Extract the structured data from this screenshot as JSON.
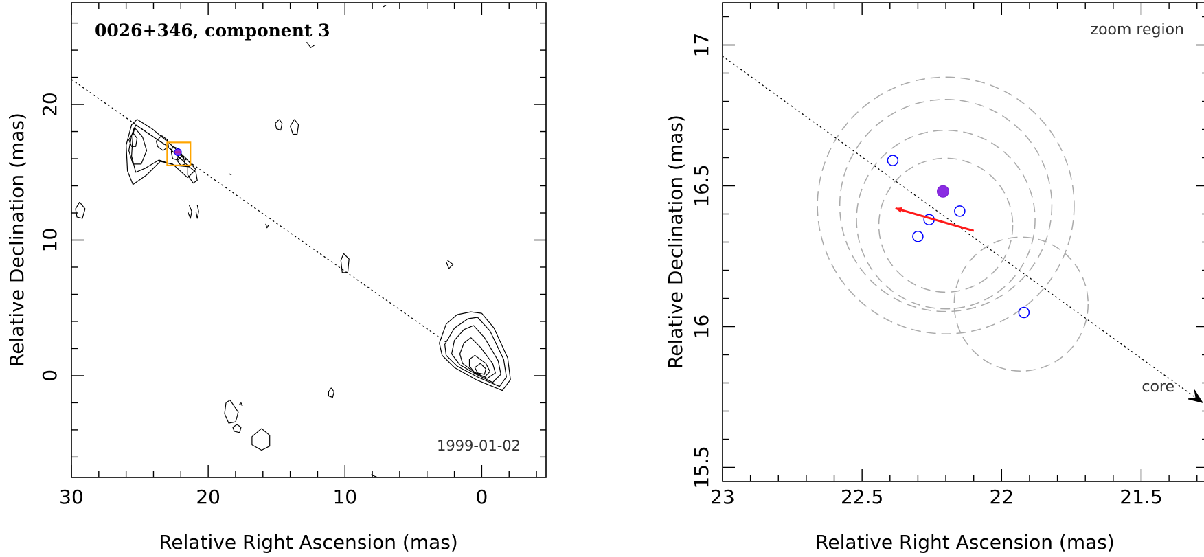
{
  "chart_data": [
    {
      "type": "contour",
      "title": "0026+346, component 3",
      "epoch_label": "1999-01-02",
      "xlabel": "Relative Right Ascension (mas)",
      "ylabel": "Relative Declination (mas)",
      "xlim": [
        30.0,
        -4.7
      ],
      "ylim": [
        -7.5,
        27.5
      ],
      "x_ticks": [
        30,
        20,
        10,
        0
      ],
      "y_ticks": [
        0,
        10,
        20
      ],
      "jet_line": {
        "x": [
          30.5,
          2.5
        ],
        "y": [
          22.2,
          2.4
        ]
      },
      "zoom_box": {
        "x": [
          21.3,
          23.0
        ],
        "y": [
          15.5,
          17.2
        ]
      },
      "component": {
        "x": 22.21,
        "y": 16.48
      },
      "contours": [
        {
          "x": [
            0.0,
            -0.9,
            -1.9,
            -2.1,
            -1.5,
            0.4,
            2.0,
            2.9,
            3.1,
            2.6,
            1.8,
            0.8,
            0.0
          ],
          "y": [
            4.6,
            3.5,
            1.3,
            -0.3,
            -1.1,
            -0.3,
            0.6,
            1.5,
            2.4,
            3.8,
            4.5,
            4.7,
            4.6
          ]
        },
        {
          "x": [
            0.3,
            -0.6,
            -1.6,
            -1.8,
            -1.3,
            0.3,
            1.8,
            2.6,
            2.7,
            2.0,
            1.0,
            0.3
          ],
          "y": [
            4.3,
            3.3,
            1.2,
            -0.1,
            -0.8,
            -0.1,
            0.7,
            1.5,
            2.3,
            3.5,
            4.2,
            4.3
          ]
        },
        {
          "x": [
            0.6,
            -0.2,
            -1.2,
            -1.4,
            -0.8,
            0.4,
            1.6,
            2.2,
            2.0,
            1.3,
            0.6
          ],
          "y": [
            3.7,
            2.8,
            1.1,
            0.1,
            -0.5,
            0.1,
            0.8,
            1.6,
            2.6,
            3.4,
            3.7
          ]
        },
        {
          "x": [
            0.8,
            0.1,
            -0.8,
            -1.0,
            -0.4,
            0.6,
            1.4,
            1.6,
            1.3,
            0.8
          ],
          "y": [
            2.8,
            2.1,
            0.9,
            0.2,
            -0.2,
            0.3,
            0.9,
            1.6,
            2.4,
            2.8
          ]
        },
        {
          "x": [
            0.5,
            -0.3,
            -0.6,
            -0.2,
            0.5,
            0.9,
            0.9,
            0.5
          ],
          "y": [
            1.5,
            0.9,
            0.3,
            -0.1,
            0.2,
            0.7,
            1.2,
            1.5
          ]
        },
        {
          "x": [
            0.1,
            -0.3,
            -0.2,
            0.3,
            0.5,
            0.1
          ],
          "y": [
            0.9,
            0.5,
            0.1,
            0.2,
            0.6,
            0.9
          ]
        },
        {
          "x": [
            25.2,
            24.1,
            22.9,
            21.6,
            20.9,
            21.5,
            22.6,
            23.5,
            24.5,
            25.5,
            25.9,
            26.0,
            25.6,
            25.2
          ],
          "y": [
            18.9,
            18.2,
            17.2,
            16.0,
            15.2,
            14.6,
            15.6,
            15.8,
            14.8,
            14.1,
            15.1,
            17.0,
            18.5,
            18.9
          ]
        },
        {
          "x": [
            25.3,
            24.3,
            23.1,
            21.9,
            21.4,
            22.4,
            23.6,
            24.6,
            25.3,
            25.6,
            25.5,
            25.3
          ],
          "y": [
            18.5,
            17.8,
            17.0,
            15.9,
            15.4,
            15.5,
            15.9,
            15.3,
            15.0,
            16.2,
            17.8,
            18.5
          ]
        },
        {
          "x": [
            25.4,
            24.8,
            24.5,
            24.9,
            25.5,
            25.8,
            25.6,
            25.4
          ],
          "y": [
            18.3,
            17.6,
            16.6,
            15.6,
            15.6,
            16.6,
            17.7,
            18.3
          ]
        },
        {
          "x": [
            25.5,
            25.2,
            25.3,
            25.6,
            25.8,
            25.5
          ],
          "y": [
            17.9,
            17.5,
            16.9,
            16.9,
            17.4,
            17.9
          ]
        },
        {
          "x": [
            23.4,
            23.0,
            22.9,
            23.3,
            23.7,
            23.8,
            23.4
          ],
          "y": [
            17.7,
            17.4,
            16.9,
            16.6,
            16.9,
            17.3,
            17.7
          ]
        },
        {
          "x": [
            22.6,
            22.1,
            21.9,
            22.2,
            22.6,
            22.7,
            22.6
          ],
          "y": [
            16.9,
            16.7,
            16.2,
            15.9,
            16.0,
            16.5,
            16.9
          ]
        },
        {
          "x": [
            22.1,
            21.8,
            21.7,
            22.0,
            22.3,
            22.1
          ],
          "y": [
            16.3,
            16.1,
            15.6,
            15.5,
            15.9,
            16.3
          ]
        },
        {
          "x": [
            21.5,
            20.9,
            20.8,
            21.1,
            21.5,
            21.5
          ],
          "y": [
            15.5,
            15.0,
            14.4,
            14.2,
            14.8,
            15.5
          ]
        },
        {
          "x": [
            29.4,
            29.0,
            29.2,
            29.6,
            29.7,
            29.4
          ],
          "y": [
            12.8,
            12.3,
            11.6,
            11.7,
            12.3,
            12.8
          ]
        },
        {
          "x": [
            21.4,
            21.2,
            21.3,
            21.5
          ],
          "y": [
            12.6,
            12.1,
            11.6,
            12.1
          ]
        },
        {
          "x": [
            20.8,
            20.7,
            20.8,
            20.9
          ],
          "y": [
            12.6,
            12.1,
            11.6,
            12.1
          ]
        },
        {
          "x": [
            14.8,
            14.6,
            14.7,
            15.0,
            15.1,
            14.8
          ],
          "y": [
            18.9,
            18.6,
            18.1,
            18.2,
            18.6,
            18.9
          ]
        },
        {
          "x": [
            13.7,
            13.4,
            13.5,
            13.8,
            14.0,
            13.7
          ],
          "y": [
            18.9,
            18.5,
            17.8,
            17.8,
            18.4,
            18.9
          ]
        },
        {
          "x": [
            10.1,
            9.7,
            9.8,
            10.2,
            10.3,
            10.1
          ],
          "y": [
            9.0,
            8.6,
            7.6,
            7.6,
            8.5,
            9.0
          ]
        },
        {
          "x": [
            2.5,
            2.1,
            2.4,
            2.6
          ],
          "y": [
            8.5,
            8.2,
            7.9,
            8.4
          ]
        },
        {
          "x": [
            18.7,
            18.4,
            17.8,
            18.0,
            18.5,
            18.8,
            18.7
          ],
          "y": [
            -2.0,
            -1.8,
            -2.7,
            -3.4,
            -3.5,
            -2.8,
            -2.0
          ]
        },
        {
          "x": [
            17.9,
            17.6,
            17.7,
            18.1,
            18.2,
            17.9
          ],
          "y": [
            -3.6,
            -3.8,
            -4.2,
            -4.1,
            -3.8,
            -3.6
          ]
        },
        {
          "x": [
            16.1,
            15.5,
            15.5,
            16.1,
            16.8,
            16.8,
            16.1
          ],
          "y": [
            -3.9,
            -4.4,
            -5.2,
            -5.5,
            -5.1,
            -4.5,
            -3.9
          ]
        },
        {
          "x": [
            11.0,
            10.8,
            10.9,
            11.2,
            11.2,
            11.0
          ],
          "y": [
            -0.9,
            -1.2,
            -1.6,
            -1.5,
            -1.2,
            -0.9
          ]
        },
        {
          "x": [
            12.8,
            12.5,
            12.2
          ],
          "y": [
            24.6,
            24.2,
            24.4
          ]
        },
        {
          "x": [
            15.8,
            15.7,
            15.6
          ],
          "y": [
            11.2,
            10.9,
            11.1
          ]
        },
        {
          "x": [
            18.5,
            18.3
          ],
          "y": [
            14.9,
            14.8
          ]
        },
        {
          "x": [
            8.1,
            7.6
          ],
          "y": [
            -7.3,
            -7.5
          ]
        },
        {
          "x": [
            17.6,
            17.5,
            17.7,
            17.6
          ],
          "y": [
            -2.0,
            -2.2,
            -2.1,
            -2.0
          ]
        },
        {
          "x": [
            7.2,
            7.0
          ],
          "y": [
            27.2,
            27.3
          ]
        }
      ]
    },
    {
      "type": "scatter",
      "corner_label": "zoom region",
      "core_label": "core",
      "xlabel": "Relative Right Ascension (mas)",
      "ylabel": "Relative Declination (mas)",
      "xlim": [
        23.0,
        21.26
      ],
      "ylim": [
        15.45,
        17.15
      ],
      "x_ticks": [
        23,
        22.5,
        22,
        21.5
      ],
      "y_ticks": [
        15.5,
        16,
        16.5,
        17
      ],
      "jet_line": {
        "x": [
          23.0,
          21.28
        ],
        "y": [
          16.96,
          15.73
        ]
      },
      "component": {
        "x": 22.21,
        "y": 16.48
      },
      "motion_arrow": {
        "x": [
          22.1,
          22.38
        ],
        "y": [
          16.34,
          16.42
        ]
      },
      "open_points": {
        "x": [
          22.39,
          22.15,
          22.26,
          22.3,
          21.92
        ],
        "y": [
          16.59,
          16.41,
          16.38,
          16.32,
          16.05
        ]
      },
      "error_circles": [
        {
          "x": 22.2,
          "y": 16.43,
          "r": 0.46
        },
        {
          "x": 22.2,
          "y": 16.43,
          "r": 0.38
        },
        {
          "x": 22.2,
          "y": 16.38,
          "r": 0.32
        },
        {
          "x": 22.2,
          "y": 16.36,
          "r": 0.24
        },
        {
          "x": 21.93,
          "y": 16.08,
          "r": 0.24
        }
      ]
    }
  ]
}
